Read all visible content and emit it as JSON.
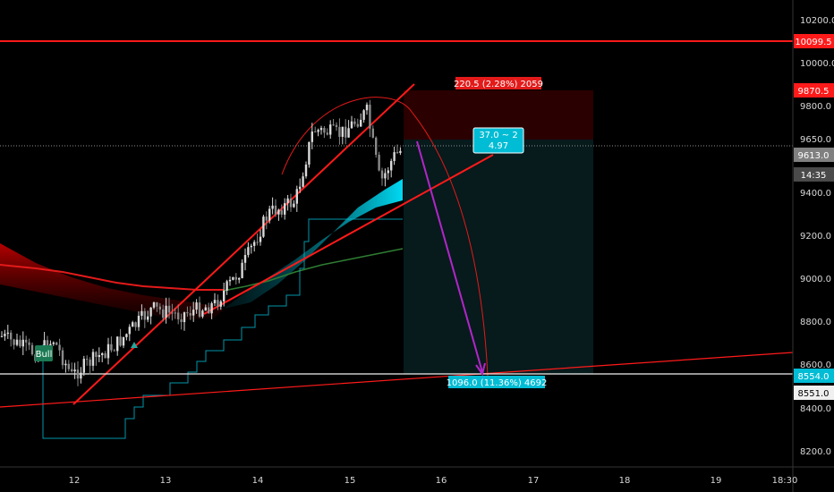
{
  "chart_data": {
    "type": "candlestick",
    "x_ticks": [
      "12",
      "13",
      "14",
      "15",
      "16",
      "17",
      "18",
      "19",
      "18:30"
    ],
    "y_ticks": [
      "8200.0",
      "8400.0",
      "8600.0",
      "8800.0",
      "9000.0",
      "9200.0",
      "9400.0",
      "9650.0",
      "9800.0",
      "10000.0",
      "10200.0"
    ],
    "ylim": [
      8150,
      10270
    ],
    "price_labels": {
      "resistance": "10099.5",
      "stop": "9870.5",
      "current": "9613.0",
      "countdown": "14:35",
      "target": "8554.0",
      "line_level": "8551.0"
    },
    "annotations": {
      "risk": "220.5 (2.28%) 2059",
      "reward": "1096.0 (11.36%) 4692",
      "ratio_line1": "37.0 ~ 2",
      "ratio_line2": "4.97",
      "bull_tag": "Bull"
    },
    "colors": {
      "up": "#d9d9d9",
      "down": "#8a8a8a",
      "resistance": "#ff1a1a",
      "stop_zone": "#2a0000",
      "profit_zone": "#071a1c",
      "target_line": "#f0f0f0",
      "current": "#808080",
      "cyan": "#00bcd4",
      "forecast": "#b226c9",
      "green_ma": "#2e7d32"
    }
  }
}
